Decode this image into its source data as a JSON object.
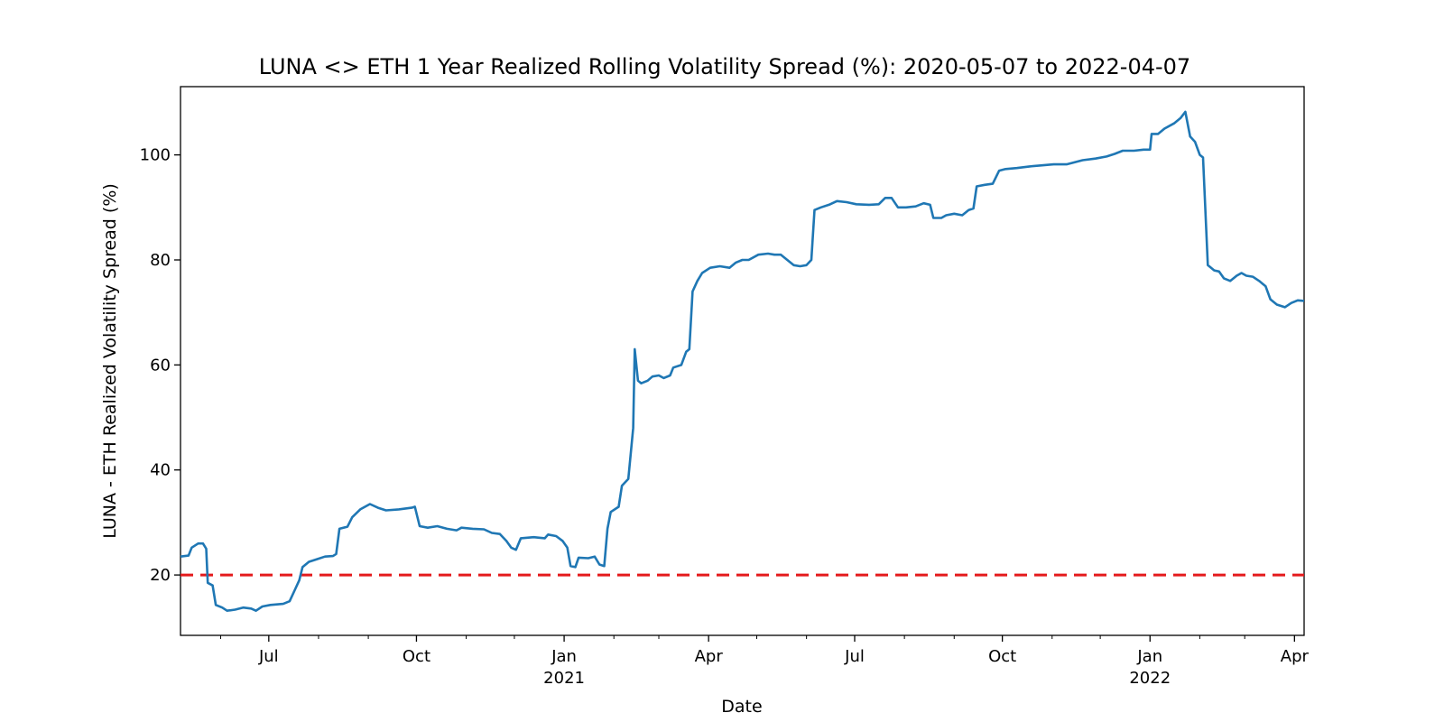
{
  "chart_data": {
    "type": "line",
    "title": "LUNA <> ETH 1 Year Realized Rolling Volatility Spread (%): 2020-05-07 to 2022-04-07",
    "xlabel": "Date",
    "ylabel": "LUNA - ETH Realized Volatility Spread (%)",
    "xlim": [
      "2020-05-07",
      "2022-04-07"
    ],
    "ylim": [
      8.5,
      113
    ],
    "grid": false,
    "x_ticks": [
      {
        "date": "2020-07-01",
        "label": "Jul",
        "year": ""
      },
      {
        "date": "2020-10-01",
        "label": "Oct",
        "year": ""
      },
      {
        "date": "2021-01-01",
        "label": "Jan",
        "year": "2021"
      },
      {
        "date": "2021-04-01",
        "label": "Apr",
        "year": ""
      },
      {
        "date": "2021-07-01",
        "label": "Jul",
        "year": ""
      },
      {
        "date": "2021-10-01",
        "label": "Oct",
        "year": ""
      },
      {
        "date": "2022-01-01",
        "label": "Jan",
        "year": "2022"
      },
      {
        "date": "2022-04-01",
        "label": "Apr",
        "year": ""
      }
    ],
    "minor_x_ticks": [
      "2020-06-01",
      "2020-08-01",
      "2020-09-01",
      "2020-11-01",
      "2020-12-01",
      "2021-02-01",
      "2021-03-01",
      "2021-05-01",
      "2021-06-01",
      "2021-08-01",
      "2021-09-01",
      "2021-11-01",
      "2021-12-01",
      "2022-02-01",
      "2022-03-01"
    ],
    "y_ticks": [
      20,
      40,
      60,
      80,
      100
    ],
    "reference_line": {
      "y": 20,
      "color": "#e41a1c",
      "style": "dashed"
    },
    "series": [
      {
        "name": "",
        "color": "#1f77b4",
        "points": [
          [
            "2020-05-07",
            23.5
          ],
          [
            "2020-05-12",
            23.7
          ],
          [
            "2020-05-14",
            25.2
          ],
          [
            "2020-05-18",
            26
          ],
          [
            "2020-05-21",
            26
          ],
          [
            "2020-05-23",
            25
          ],
          [
            "2020-05-24",
            18.5
          ],
          [
            "2020-05-27",
            18
          ],
          [
            "2020-05-29",
            14.3
          ],
          [
            "2020-06-02",
            13.8
          ],
          [
            "2020-06-05",
            13.2
          ],
          [
            "2020-06-10",
            13.4
          ],
          [
            "2020-06-15",
            13.8
          ],
          [
            "2020-06-20",
            13.6
          ],
          [
            "2020-06-23",
            13.2
          ],
          [
            "2020-06-27",
            14
          ],
          [
            "2020-07-02",
            14.3
          ],
          [
            "2020-07-10",
            14.5
          ],
          [
            "2020-07-14",
            15
          ],
          [
            "2020-07-17",
            17
          ],
          [
            "2020-07-20",
            19
          ],
          [
            "2020-07-22",
            21.5
          ],
          [
            "2020-07-26",
            22.5
          ],
          [
            "2020-07-31",
            23
          ],
          [
            "2020-08-05",
            23.5
          ],
          [
            "2020-08-10",
            23.6
          ],
          [
            "2020-08-12",
            24
          ],
          [
            "2020-08-14",
            28.8
          ],
          [
            "2020-08-19",
            29.2
          ],
          [
            "2020-08-22",
            31
          ],
          [
            "2020-08-27",
            32.5
          ],
          [
            "2020-09-02",
            33.5
          ],
          [
            "2020-09-07",
            32.8
          ],
          [
            "2020-09-12",
            32.3
          ],
          [
            "2020-09-20",
            32.5
          ],
          [
            "2020-09-28",
            32.8
          ],
          [
            "2020-09-30",
            33
          ],
          [
            "2020-10-03",
            29.3
          ],
          [
            "2020-10-08",
            29
          ],
          [
            "2020-10-14",
            29.3
          ],
          [
            "2020-10-20",
            28.8
          ],
          [
            "2020-10-26",
            28.5
          ],
          [
            "2020-10-29",
            29
          ],
          [
            "2020-11-05",
            28.8
          ],
          [
            "2020-11-12",
            28.7
          ],
          [
            "2020-11-17",
            28
          ],
          [
            "2020-11-22",
            27.8
          ],
          [
            "2020-11-26",
            26.5
          ],
          [
            "2020-11-29",
            25.2
          ],
          [
            "2020-12-02",
            24.8
          ],
          [
            "2020-12-05",
            27
          ],
          [
            "2020-12-13",
            27.2
          ],
          [
            "2020-12-20",
            27
          ],
          [
            "2020-12-22",
            27.7
          ],
          [
            "2020-12-27",
            27.4
          ],
          [
            "2020-12-31",
            26.5
          ],
          [
            "2021-01-03",
            25.2
          ],
          [
            "2021-01-05",
            21.7
          ],
          [
            "2021-01-08",
            21.5
          ],
          [
            "2021-01-10",
            23.3
          ],
          [
            "2021-01-16",
            23.2
          ],
          [
            "2021-01-20",
            23.5
          ],
          [
            "2021-01-23",
            22
          ],
          [
            "2021-01-26",
            21.7
          ],
          [
            "2021-01-28",
            28.8
          ],
          [
            "2021-01-30",
            32
          ],
          [
            "2021-02-04",
            33
          ],
          [
            "2021-02-06",
            37
          ],
          [
            "2021-02-10",
            38.3
          ],
          [
            "2021-02-13",
            48
          ],
          [
            "2021-02-14",
            63
          ],
          [
            "2021-02-16",
            57
          ],
          [
            "2021-02-18",
            56.5
          ],
          [
            "2021-02-22",
            57
          ],
          [
            "2021-02-25",
            57.8
          ],
          [
            "2021-03-01",
            58
          ],
          [
            "2021-03-04",
            57.5
          ],
          [
            "2021-03-08",
            58
          ],
          [
            "2021-03-10",
            59.5
          ],
          [
            "2021-03-15",
            60
          ],
          [
            "2021-03-18",
            62.5
          ],
          [
            "2021-03-20",
            63
          ],
          [
            "2021-03-22",
            74
          ],
          [
            "2021-03-25",
            76
          ],
          [
            "2021-03-28",
            77.5
          ],
          [
            "2021-04-02",
            78.5
          ],
          [
            "2021-04-08",
            78.8
          ],
          [
            "2021-04-14",
            78.5
          ],
          [
            "2021-04-18",
            79.5
          ],
          [
            "2021-04-22",
            80
          ],
          [
            "2021-04-26",
            80
          ],
          [
            "2021-05-02",
            81
          ],
          [
            "2021-05-08",
            81.2
          ],
          [
            "2021-05-12",
            81
          ],
          [
            "2021-05-16",
            81
          ],
          [
            "2021-05-20",
            80
          ],
          [
            "2021-05-24",
            79
          ],
          [
            "2021-05-28",
            78.8
          ],
          [
            "2021-06-01",
            79
          ],
          [
            "2021-06-04",
            80
          ],
          [
            "2021-06-06",
            89.5
          ],
          [
            "2021-06-10",
            90
          ],
          [
            "2021-06-15",
            90.5
          ],
          [
            "2021-06-20",
            91.2
          ],
          [
            "2021-06-26",
            91
          ],
          [
            "2021-07-02",
            90.6
          ],
          [
            "2021-07-10",
            90.5
          ],
          [
            "2021-07-16",
            90.6
          ],
          [
            "2021-07-20",
            91.8
          ],
          [
            "2021-07-24",
            91.8
          ],
          [
            "2021-07-28",
            90
          ],
          [
            "2021-08-02",
            90
          ],
          [
            "2021-08-08",
            90.2
          ],
          [
            "2021-08-13",
            90.8
          ],
          [
            "2021-08-17",
            90.5
          ],
          [
            "2021-08-19",
            88
          ],
          [
            "2021-08-24",
            88
          ],
          [
            "2021-08-27",
            88.5
          ],
          [
            "2021-09-01",
            88.8
          ],
          [
            "2021-09-06",
            88.5
          ],
          [
            "2021-09-10",
            89.5
          ],
          [
            "2021-09-13",
            89.8
          ],
          [
            "2021-09-15",
            94
          ],
          [
            "2021-09-20",
            94.3
          ],
          [
            "2021-09-25",
            94.5
          ],
          [
            "2021-09-29",
            97
          ],
          [
            "2021-10-03",
            97.3
          ],
          [
            "2021-10-10",
            97.5
          ],
          [
            "2021-10-18",
            97.8
          ],
          [
            "2021-10-25",
            98
          ],
          [
            "2021-11-02",
            98.2
          ],
          [
            "2021-11-10",
            98.2
          ],
          [
            "2021-11-20",
            99
          ],
          [
            "2021-11-28",
            99.3
          ],
          [
            "2021-12-05",
            99.7
          ],
          [
            "2021-12-10",
            100.2
          ],
          [
            "2021-12-15",
            100.8
          ],
          [
            "2021-12-22",
            100.8
          ],
          [
            "2021-12-28",
            101
          ],
          [
            "2022-01-01",
            101
          ],
          [
            "2022-01-02",
            104
          ],
          [
            "2022-01-06",
            104
          ],
          [
            "2022-01-10",
            105
          ],
          [
            "2022-01-16",
            106
          ],
          [
            "2022-01-20",
            107
          ],
          [
            "2022-01-23",
            108.2
          ],
          [
            "2022-01-26",
            103.5
          ],
          [
            "2022-01-29",
            102.5
          ],
          [
            "2022-02-01",
            100
          ],
          [
            "2022-02-03",
            99.5
          ],
          [
            "2022-02-06",
            79
          ],
          [
            "2022-02-10",
            78
          ],
          [
            "2022-02-13",
            77.8
          ],
          [
            "2022-02-16",
            76.5
          ],
          [
            "2022-02-20",
            76
          ],
          [
            "2022-02-24",
            77
          ],
          [
            "2022-02-27",
            77.5
          ],
          [
            "2022-03-02",
            77
          ],
          [
            "2022-03-06",
            76.8
          ],
          [
            "2022-03-10",
            76
          ],
          [
            "2022-03-14",
            75
          ],
          [
            "2022-03-17",
            72.5
          ],
          [
            "2022-03-21",
            71.5
          ],
          [
            "2022-03-26",
            71
          ],
          [
            "2022-03-30",
            71.8
          ],
          [
            "2022-04-03",
            72.3
          ],
          [
            "2022-04-07",
            72.2
          ]
        ]
      }
    ]
  }
}
